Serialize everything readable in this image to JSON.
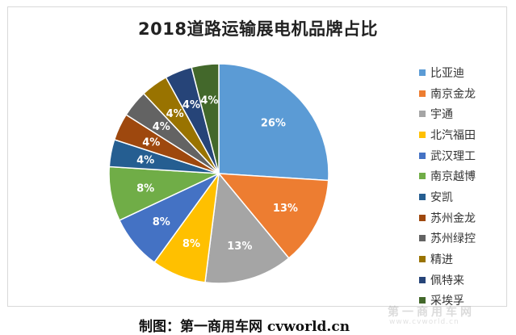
{
  "chart_data": {
    "type": "pie",
    "title": "2018道路运输展电机品牌占比",
    "categories": [
      "比亚迪",
      "南京金龙",
      "宇通",
      "北汽福田",
      "武汉理工",
      "南京越博",
      "安凯",
      "苏州金龙",
      "苏州绿控",
      "精进",
      "佩特来",
      "采埃孚"
    ],
    "values": [
      26,
      13,
      13,
      8,
      8,
      8,
      4,
      4,
      4,
      4,
      4,
      4
    ],
    "labels": [
      "26%",
      "13%",
      "13%",
      "8%",
      "8%",
      "8%",
      "4%",
      "4%",
      "4%",
      "4%",
      "4%",
      "4%"
    ],
    "colors": [
      "#5b9bd5",
      "#ed7d31",
      "#a5a5a5",
      "#ffc000",
      "#4472c4",
      "#70ad47",
      "#255e91",
      "#9e480e",
      "#636363",
      "#997300",
      "#264478",
      "#43682b"
    ],
    "legend_position": "right",
    "start_angle": "12 o'clock, clockwise"
  },
  "credit": "制图：第一商用车网 cvworld.cn",
  "watermark": {
    "text": "第一商用车网",
    "sub": "www.cvworld.cn"
  }
}
